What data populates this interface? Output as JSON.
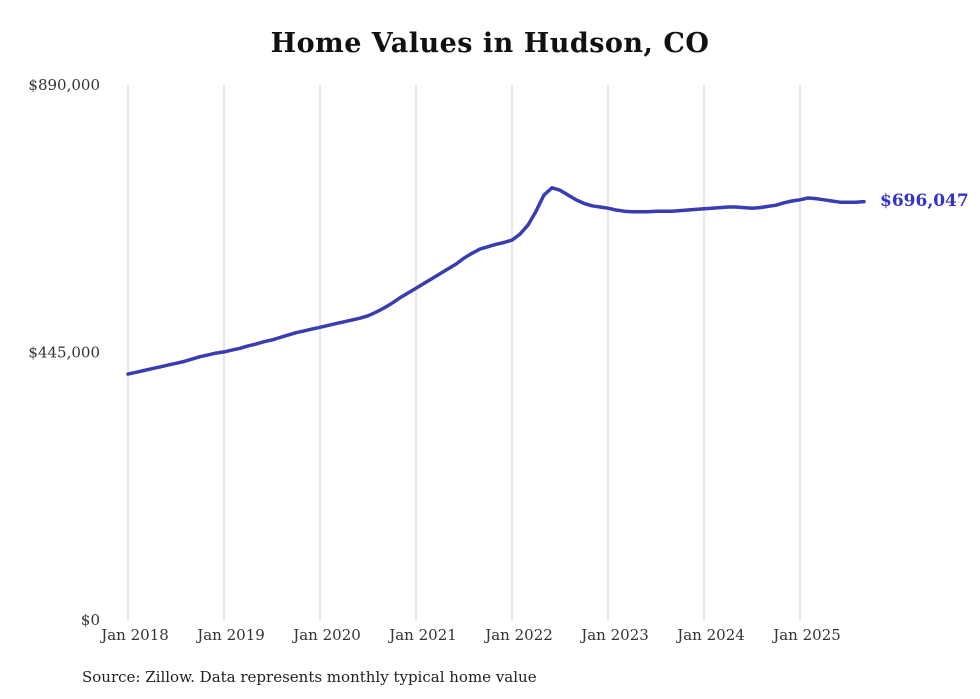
{
  "title": "Home Values in Hudson, CO",
  "source_note": "Source: Zillow. Data represents monthly typical home value",
  "end_label": "$696,047",
  "chart_data": {
    "type": "line",
    "title": "Home Values in Hudson, CO",
    "series_name": "Monthly typical home value",
    "x": [
      "2018-01",
      "2018-02",
      "2018-03",
      "2018-04",
      "2018-05",
      "2018-06",
      "2018-07",
      "2018-08",
      "2018-09",
      "2018-10",
      "2018-11",
      "2018-12",
      "2019-01",
      "2019-02",
      "2019-03",
      "2019-04",
      "2019-05",
      "2019-06",
      "2019-07",
      "2019-08",
      "2019-09",
      "2019-10",
      "2019-11",
      "2019-12",
      "2020-01",
      "2020-02",
      "2020-03",
      "2020-04",
      "2020-05",
      "2020-06",
      "2020-07",
      "2020-08",
      "2020-09",
      "2020-10",
      "2020-11",
      "2020-12",
      "2021-01",
      "2021-02",
      "2021-03",
      "2021-04",
      "2021-05",
      "2021-06",
      "2021-07",
      "2021-08",
      "2021-09",
      "2021-10",
      "2021-11",
      "2021-12",
      "2022-01",
      "2022-02",
      "2022-03",
      "2022-04",
      "2022-05",
      "2022-06",
      "2022-07",
      "2022-08",
      "2022-09",
      "2022-10",
      "2022-11",
      "2022-12",
      "2023-01",
      "2023-02",
      "2023-03",
      "2023-04",
      "2023-05",
      "2023-06",
      "2023-07",
      "2023-08",
      "2023-09",
      "2023-10",
      "2023-11",
      "2023-12",
      "2024-01",
      "2024-02",
      "2024-03",
      "2024-04",
      "2024-05",
      "2024-06",
      "2024-07",
      "2024-08",
      "2024-09",
      "2024-10",
      "2024-11",
      "2024-12",
      "2025-01",
      "2025-02",
      "2025-03",
      "2025-04",
      "2025-05",
      "2025-06",
      "2025-07",
      "2025-08",
      "2025-09"
    ],
    "values": [
      409000,
      412000,
      415000,
      418000,
      421000,
      424000,
      427000,
      430000,
      434000,
      438000,
      441000,
      444000,
      446000,
      449000,
      452000,
      456000,
      459000,
      463000,
      466000,
      470000,
      474000,
      478000,
      481000,
      484000,
      487000,
      490000,
      493000,
      496000,
      499000,
      502000,
      506000,
      512000,
      519000,
      527000,
      536000,
      544000,
      552000,
      560000,
      568000,
      576000,
      584000,
      592000,
      602000,
      610000,
      617000,
      621000,
      625000,
      628000,
      632000,
      642000,
      657000,
      680000,
      707000,
      719000,
      715000,
      707000,
      699000,
      693000,
      689000,
      687000,
      685000,
      682000,
      680000,
      679000,
      679000,
      679000,
      680000,
      680000,
      680000,
      681000,
      682000,
      683000,
      684000,
      685000,
      686000,
      687000,
      687000,
      686000,
      685000,
      686000,
      688000,
      690000,
      694000,
      697000,
      699000,
      702000,
      701000,
      699000,
      697000,
      695000,
      695000,
      695000,
      696047
    ],
    "latest_value": 696047,
    "latest_value_label": "$696,047",
    "ylim": [
      0,
      890000
    ],
    "y_ticks": [
      {
        "label": "$0",
        "value": 0
      },
      {
        "label": "$445,000",
        "value": 445000
      },
      {
        "label": "$890,000",
        "value": 890000
      }
    ],
    "x_ticks": [
      {
        "label": "Jan 2018",
        "month_index": 0
      },
      {
        "label": "Jan 2019",
        "month_index": 12
      },
      {
        "label": "Jan 2020",
        "month_index": 24
      },
      {
        "label": "Jan 2021",
        "month_index": 36
      },
      {
        "label": "Jan 2022",
        "month_index": 48
      },
      {
        "label": "Jan 2023",
        "month_index": 60
      },
      {
        "label": "Jan 2024",
        "month_index": 72
      },
      {
        "label": "Jan 2025",
        "month_index": 84
      }
    ],
    "grid": "vertical-only",
    "legend": "none",
    "line_color": "#3a3cb1",
    "label_color": "#3333cc",
    "grid_color": "#cccccc"
  }
}
